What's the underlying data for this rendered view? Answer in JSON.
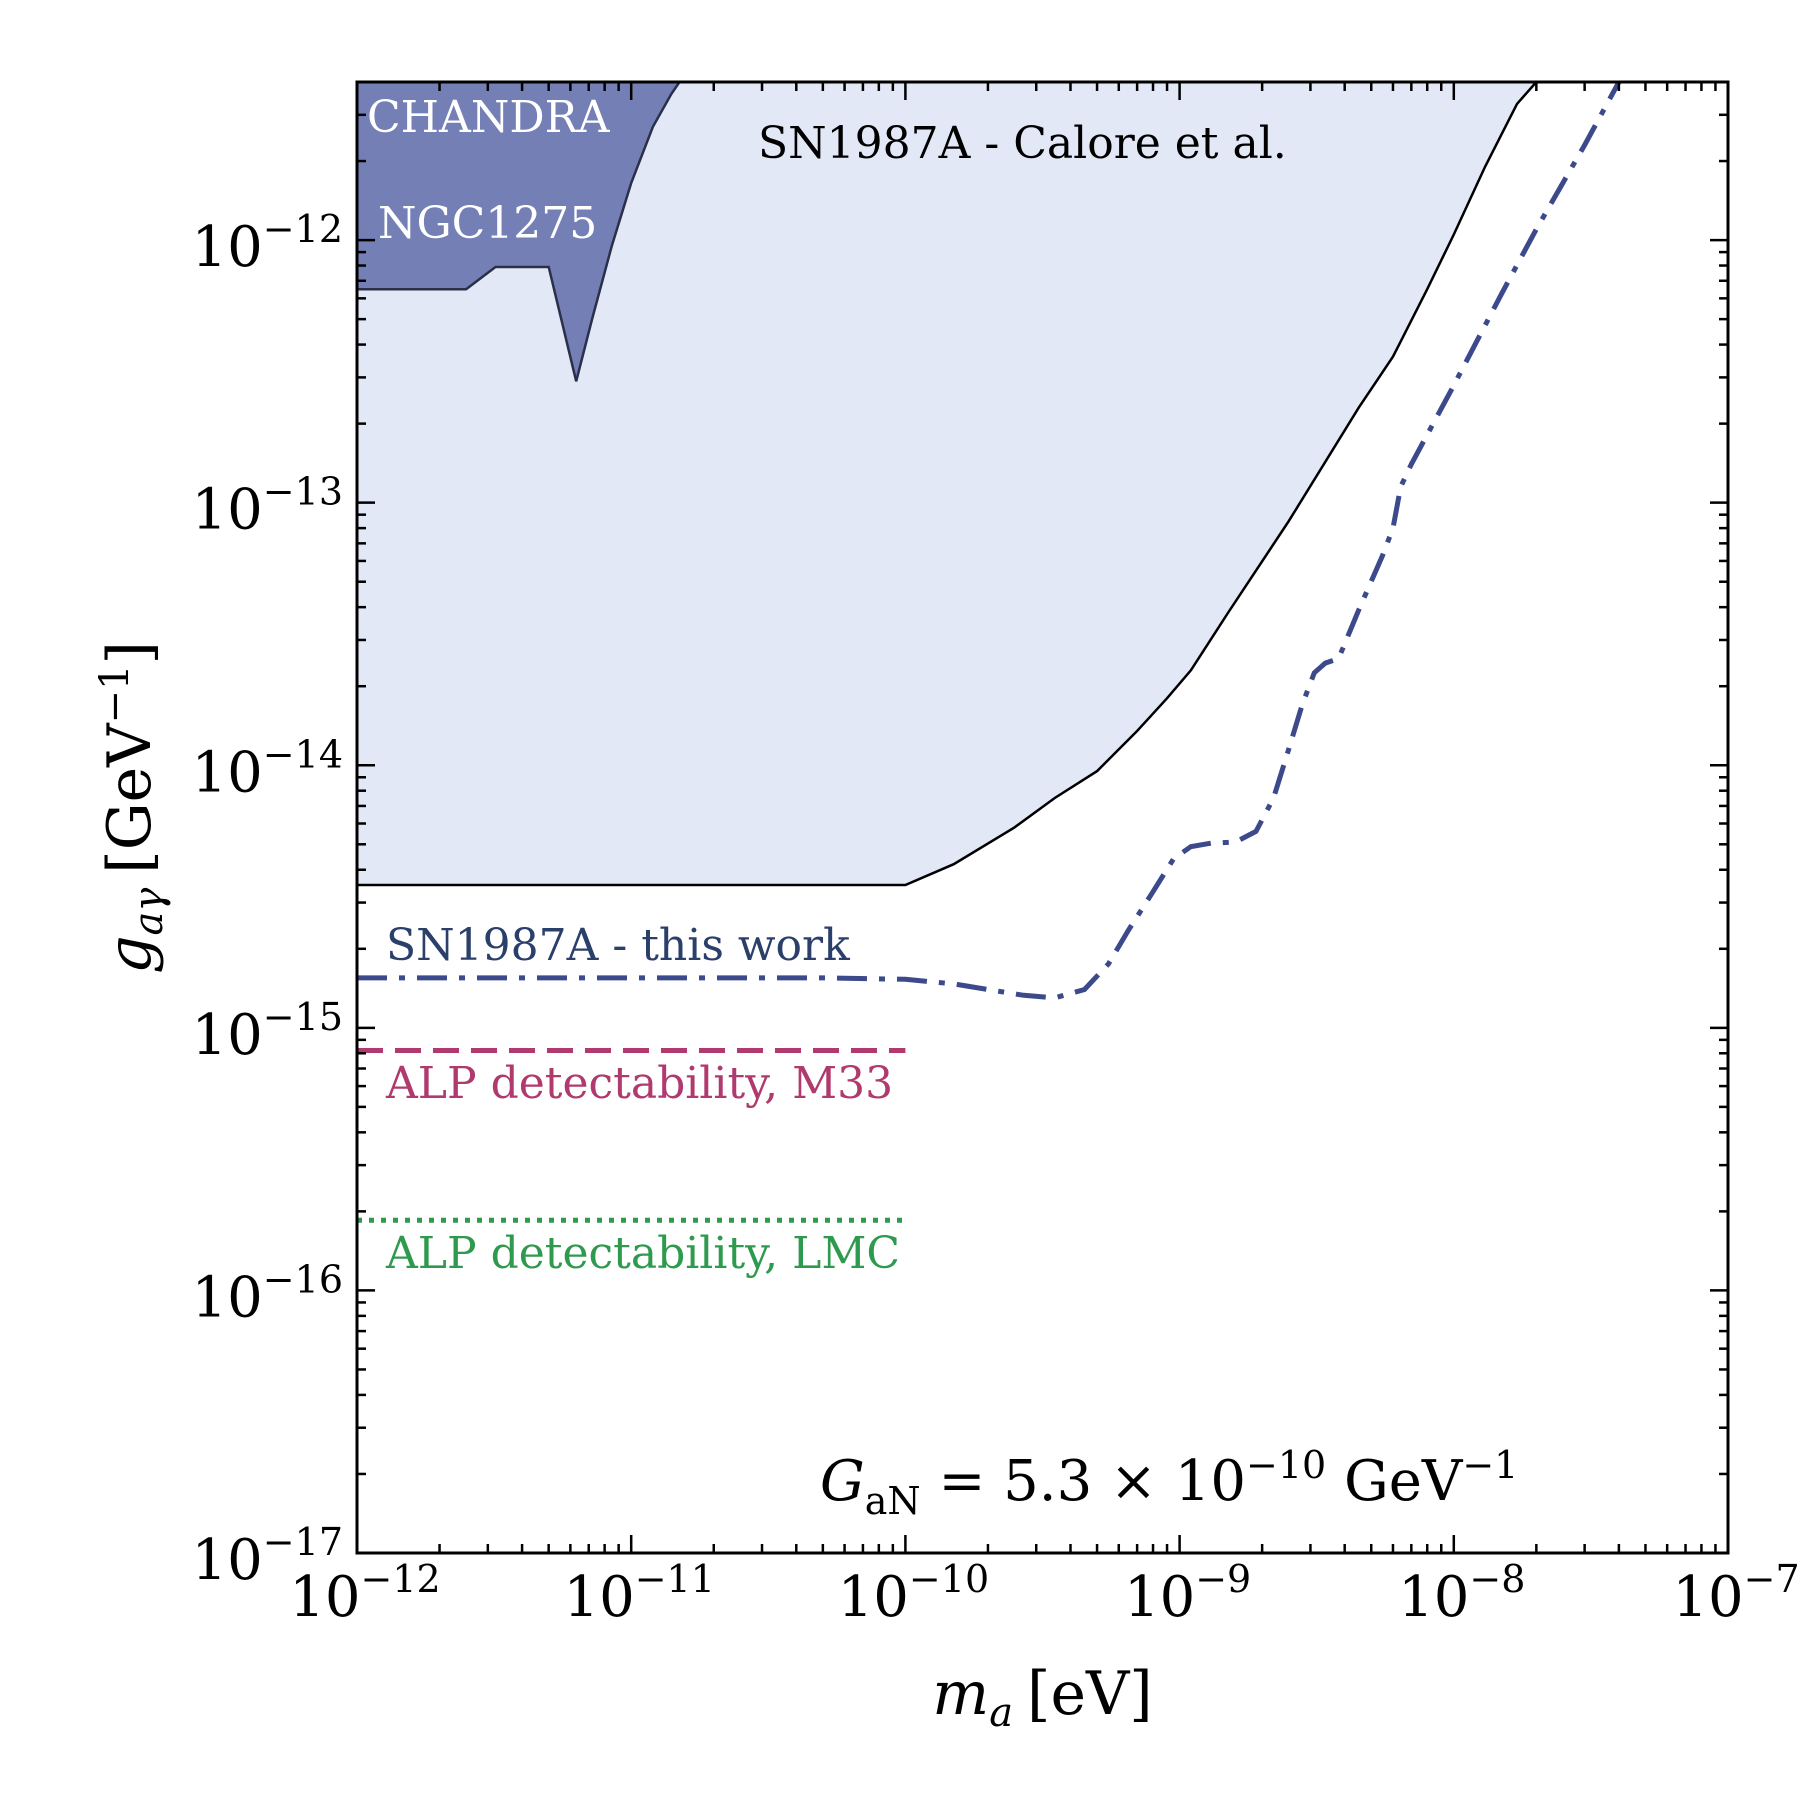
{
  "chart_data": {
    "type": "line",
    "x_scale": "log",
    "y_scale": "log",
    "xlim": [
      1e-12,
      1e-07
    ],
    "ylim": [
      1e-17,
      4e-12
    ],
    "xlabel": {
      "symbol": "m",
      "subscript": "a",
      "unit": "[eV]"
    },
    "ylabel": {
      "symbol": "g",
      "subscript": "aγ",
      "unit_prefix": "[GeV",
      "unit_exp": "−1",
      "unit_suffix": "]"
    },
    "x_ticks": [
      {
        "base": "10",
        "exp": "−12",
        "value": 1e-12
      },
      {
        "base": "10",
        "exp": "−11",
        "value": 1e-11
      },
      {
        "base": "10",
        "exp": "−10",
        "value": 1e-10
      },
      {
        "base": "10",
        "exp": "−9",
        "value": 1e-09
      },
      {
        "base": "10",
        "exp": "−8",
        "value": 1e-08
      },
      {
        "base": "10",
        "exp": "−7",
        "value": 1e-07
      }
    ],
    "y_ticks": [
      {
        "base": "10",
        "exp": "−17",
        "value": 1e-17
      },
      {
        "base": "10",
        "exp": "−16",
        "value": 1e-16
      },
      {
        "base": "10",
        "exp": "−15",
        "value": 1e-15
      },
      {
        "base": "10",
        "exp": "−14",
        "value": 1e-14
      },
      {
        "base": "10",
        "exp": "−13",
        "value": 1e-13
      },
      {
        "base": "10",
        "exp": "−12",
        "value": 1e-12
      }
    ],
    "regions": [
      {
        "label": "SN1987A - Calore et al.",
        "fill": "#e3e8f7",
        "stroke": "#000000",
        "points": [
          [
            1e-12,
            3.5e-15
          ],
          [
            1e-10,
            3.5e-15
          ],
          [
            1.5e-10,
            4.2e-15
          ],
          [
            2.5e-10,
            5.8e-15
          ],
          [
            3.5e-10,
            7.5e-15
          ],
          [
            5e-10,
            9.5e-15
          ],
          [
            7e-10,
            1.35e-14
          ],
          [
            9e-10,
            1.8e-14
          ],
          [
            1.1e-09,
            2.3e-14
          ],
          [
            1.5e-09,
            3.8e-14
          ],
          [
            2.5e-09,
            8.5e-14
          ],
          [
            4.5e-09,
            2.3e-13
          ],
          [
            6e-09,
            3.6e-13
          ],
          [
            8e-09,
            6.5e-13
          ],
          [
            1e-08,
            1.05e-12
          ],
          [
            1.3e-08,
            1.9e-12
          ],
          [
            1.7e-08,
            3.3e-12
          ],
          [
            2e-08,
            4e-12
          ]
        ]
      },
      {
        "label_1": "CHANDRA",
        "label_2": "NGC1275",
        "fill": "#7480b5",
        "stroke": "#2a2f4a",
        "points": [
          [
            1e-12,
            6.5e-13
          ],
          [
            2.5e-12,
            6.5e-13
          ],
          [
            3.2e-12,
            7.9e-13
          ],
          [
            5e-12,
            7.9e-13
          ],
          [
            6.3e-12,
            2.9e-13
          ],
          [
            7.2e-12,
            5e-13
          ],
          [
            8.5e-12,
            9.5e-13
          ],
          [
            1e-11,
            1.65e-12
          ],
          [
            1.2e-11,
            2.7e-12
          ],
          [
            1.4e-11,
            3.6e-12
          ],
          [
            1.5e-11,
            4e-12
          ]
        ]
      }
    ],
    "series": [
      {
        "name": "SN1987A - this work",
        "color": "#3c4a8c",
        "label_color": "#2a3f6a",
        "style": "dashdot",
        "points": [
          [
            1e-12,
            1.55e-15
          ],
          [
            5e-11,
            1.55e-15
          ],
          [
            1e-10,
            1.53e-15
          ],
          [
            1.5e-10,
            1.47e-15
          ],
          [
            2e-10,
            1.4e-15
          ],
          [
            2.7e-10,
            1.33e-15
          ],
          [
            3.5e-10,
            1.3e-15
          ],
          [
            4.5e-10,
            1.4e-15
          ],
          [
            5.5e-10,
            1.75e-15
          ],
          [
            6.5e-10,
            2.35e-15
          ],
          [
            8e-10,
            3.3e-15
          ],
          [
            9.5e-10,
            4.4e-15
          ],
          [
            1.1e-09,
            4.9e-15
          ],
          [
            1.3e-09,
            5.05e-15
          ],
          [
            1.6e-09,
            5.1e-15
          ],
          [
            1.9e-09,
            5.6e-15
          ],
          [
            2.2e-09,
            7.5e-15
          ],
          [
            2.5e-09,
            1.15e-14
          ],
          [
            2.8e-09,
            1.7e-14
          ],
          [
            3.1e-09,
            2.25e-14
          ],
          [
            3.4e-09,
            2.45e-14
          ],
          [
            3.8e-09,
            2.55e-14
          ],
          [
            4.5e-09,
            3.9e-14
          ],
          [
            5.5e-09,
            6.3e-14
          ],
          [
            6e-09,
            8e-14
          ],
          [
            6.4e-09,
            1.15e-13
          ],
          [
            7e-09,
            1.4e-13
          ],
          [
            1e-08,
            2.8e-13
          ],
          [
            1.5e-08,
            6.3e-13
          ],
          [
            2e-08,
            1.1e-12
          ],
          [
            3e-08,
            2.3e-12
          ],
          [
            4e-08,
            4e-12
          ]
        ]
      },
      {
        "name": "ALP detectability, M33",
        "color": "#b0396d",
        "style": "dashed",
        "points": [
          [
            1e-12,
            8.2e-16
          ],
          [
            1e-10,
            8.2e-16
          ]
        ]
      },
      {
        "name": "ALP detectability, LMC",
        "color": "#2e9a4d",
        "style": "dotted",
        "points": [
          [
            1e-12,
            1.85e-16
          ],
          [
            1e-10,
            1.85e-16
          ]
        ]
      }
    ],
    "annotation": {
      "symbol": "G",
      "subscript": "aN",
      "value_text": " = 5.3 × 10",
      "exponent": "−10",
      "unit_text": " GeV",
      "unit_exp": "−1"
    }
  }
}
